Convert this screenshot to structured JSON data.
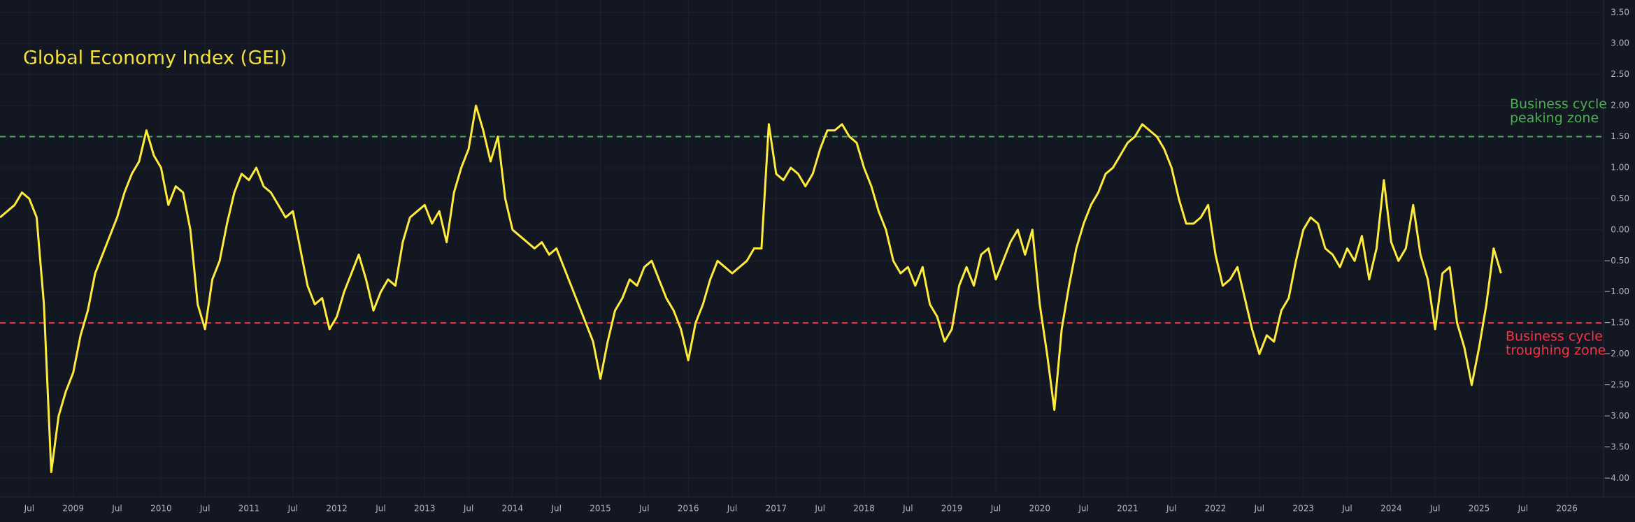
{
  "chart_data": {
    "type": "line",
    "title": "Global Economy Index (GEI)",
    "color": "#ffeb3b",
    "grid": true,
    "x": [
      "2008-03",
      "2008-04",
      "2008-05",
      "2008-06",
      "2008-07",
      "2008-08",
      "2008-09",
      "2008-10",
      "2008-11",
      "2008-12",
      "2009-01",
      "2009-02",
      "2009-03",
      "2009-04",
      "2009-05",
      "2009-06",
      "2009-07",
      "2009-08",
      "2009-09",
      "2009-10",
      "2009-11",
      "2009-12",
      "2010-01",
      "2010-02",
      "2010-03",
      "2010-04",
      "2010-05",
      "2010-06",
      "2010-07",
      "2010-08",
      "2010-09",
      "2010-10",
      "2010-11",
      "2010-12",
      "2011-01",
      "2011-02",
      "2011-03",
      "2011-04",
      "2011-05",
      "2011-06",
      "2011-07",
      "2011-08",
      "2011-09",
      "2011-10",
      "2011-11",
      "2011-12",
      "2012-01",
      "2012-02",
      "2012-03",
      "2012-04",
      "2012-05",
      "2012-06",
      "2012-07",
      "2012-08",
      "2012-09",
      "2012-10",
      "2012-11",
      "2012-12",
      "2013-01",
      "2013-02",
      "2013-03",
      "2013-04",
      "2013-05",
      "2013-06",
      "2013-07",
      "2013-08",
      "2013-09",
      "2013-10",
      "2013-11",
      "2013-12",
      "2014-01",
      "2014-02",
      "2014-03",
      "2014-04",
      "2014-05",
      "2014-06",
      "2014-07",
      "2014-08",
      "2014-09",
      "2014-10",
      "2014-11",
      "2014-12",
      "2015-01",
      "2015-02",
      "2015-03",
      "2015-04",
      "2015-05",
      "2015-06",
      "2015-07",
      "2015-08",
      "2015-09",
      "2015-10",
      "2015-11",
      "2015-12",
      "2016-01",
      "2016-02",
      "2016-03",
      "2016-04",
      "2016-05",
      "2016-06",
      "2016-07",
      "2016-08",
      "2016-09",
      "2016-10",
      "2016-11",
      "2016-12",
      "2017-01",
      "2017-02",
      "2017-03",
      "2017-04",
      "2017-05",
      "2017-06",
      "2017-07",
      "2017-08",
      "2017-09",
      "2017-10",
      "2017-11",
      "2017-12",
      "2018-01",
      "2018-02",
      "2018-03",
      "2018-04",
      "2018-05",
      "2018-06",
      "2018-07",
      "2018-08",
      "2018-09",
      "2018-10",
      "2018-11",
      "2018-12",
      "2019-01",
      "2019-02",
      "2019-03",
      "2019-04",
      "2019-05",
      "2019-06",
      "2019-07",
      "2019-08",
      "2019-09",
      "2019-10",
      "2019-11",
      "2019-12",
      "2020-01",
      "2020-02",
      "2020-03",
      "2020-04",
      "2020-05",
      "2020-06",
      "2020-07",
      "2020-08",
      "2020-09",
      "2020-10",
      "2020-11",
      "2020-12",
      "2021-01",
      "2021-02",
      "2021-03",
      "2021-04",
      "2021-05",
      "2021-06",
      "2021-07",
      "2021-08",
      "2021-09",
      "2021-10",
      "2021-11",
      "2021-12",
      "2022-01",
      "2022-02",
      "2022-03",
      "2022-04",
      "2022-05",
      "2022-06",
      "2022-07",
      "2022-08",
      "2022-09",
      "2022-10",
      "2022-11",
      "2022-12",
      "2023-01",
      "2023-02",
      "2023-03",
      "2023-04",
      "2023-05",
      "2023-06",
      "2023-07",
      "2023-08",
      "2023-09",
      "2023-10",
      "2023-11",
      "2023-12",
      "2024-01",
      "2024-02",
      "2024-03",
      "2024-04",
      "2024-05",
      "2024-06",
      "2024-07",
      "2024-08",
      "2024-09",
      "2024-10",
      "2024-11",
      "2024-12",
      "2025-01",
      "2025-02",
      "2025-03",
      "2025-04"
    ],
    "values": [
      0.2,
      0.3,
      0.4,
      0.6,
      0.5,
      0.2,
      -1.2,
      -3.9,
      -3.0,
      -2.6,
      -2.3,
      -1.7,
      -1.3,
      -0.7,
      -0.4,
      -0.1,
      0.2,
      0.6,
      0.9,
      1.1,
      1.6,
      1.2,
      1.0,
      0.4,
      0.7,
      0.6,
      0.0,
      -1.2,
      -1.6,
      -0.8,
      -0.5,
      0.1,
      0.6,
      0.9,
      0.8,
      1.0,
      0.7,
      0.6,
      0.4,
      0.2,
      0.3,
      -0.3,
      -0.9,
      -1.2,
      -1.1,
      -1.6,
      -1.4,
      -1.0,
      -0.7,
      -0.4,
      -0.8,
      -1.3,
      -1.0,
      -0.8,
      -0.9,
      -0.2,
      0.2,
      0.3,
      0.4,
      0.1,
      0.3,
      -0.2,
      0.6,
      1.0,
      1.3,
      2.0,
      1.6,
      1.1,
      1.5,
      0.5,
      0.0,
      -0.1,
      -0.2,
      -0.3,
      -0.2,
      -0.4,
      -0.3,
      -0.6,
      -0.9,
      -1.2,
      -1.5,
      -1.8,
      -2.4,
      -1.8,
      -1.3,
      -1.1,
      -0.8,
      -0.9,
      -0.6,
      -0.5,
      -0.8,
      -1.1,
      -1.3,
      -1.6,
      -2.1,
      -1.5,
      -1.2,
      -0.8,
      -0.5,
      -0.6,
      -0.7,
      -0.6,
      -0.5,
      -0.3,
      -0.3,
      1.7,
      0.9,
      0.8,
      1.0,
      0.9,
      0.7,
      0.9,
      1.3,
      1.6,
      1.6,
      1.7,
      1.5,
      1.4,
      1.0,
      0.7,
      0.3,
      0.0,
      -0.5,
      -0.7,
      -0.6,
      -0.9,
      -0.6,
      -1.2,
      -1.4,
      -1.8,
      -1.6,
      -0.9,
      -0.6,
      -0.9,
      -0.4,
      -0.3,
      -0.8,
      -0.5,
      -0.2,
      0.0,
      -0.4,
      0.0,
      -1.2,
      -2.0,
      -2.9,
      -1.6,
      -0.9,
      -0.3,
      0.1,
      0.4,
      0.6,
      0.9,
      1.0,
      1.2,
      1.4,
      1.5,
      1.7,
      1.6,
      1.5,
      1.3,
      1.0,
      0.5,
      0.1,
      0.1,
      0.2,
      0.4,
      -0.4,
      -0.9,
      -0.8,
      -0.6,
      -1.1,
      -1.6,
      -2.0,
      -1.7,
      -1.8,
      -1.3,
      -1.1,
      -0.5,
      0.0,
      0.2,
      0.1,
      -0.3,
      -0.4,
      -0.6,
      -0.3,
      -0.5,
      -0.1,
      -0.8,
      -0.3,
      0.8,
      -0.2,
      -0.5,
      -0.3,
      0.4,
      -0.4,
      -0.8,
      -1.6,
      -0.7,
      -0.6,
      -1.5,
      -1.9,
      -2.5,
      -1.9,
      -1.2,
      -0.3,
      -0.7
    ],
    "xlim": [
      "2008-03",
      "2026-06"
    ],
    "xticks": [
      {
        "value": "2008-07",
        "label": "Jul"
      },
      {
        "value": "2009-01",
        "label": "2009"
      },
      {
        "value": "2009-07",
        "label": "Jul"
      },
      {
        "value": "2010-01",
        "label": "2010"
      },
      {
        "value": "2010-07",
        "label": "Jul"
      },
      {
        "value": "2011-01",
        "label": "2011"
      },
      {
        "value": "2011-07",
        "label": "Jul"
      },
      {
        "value": "2012-01",
        "label": "2012"
      },
      {
        "value": "2012-07",
        "label": "Jul"
      },
      {
        "value": "2013-01",
        "label": "2013"
      },
      {
        "value": "2013-07",
        "label": "Jul"
      },
      {
        "value": "2014-01",
        "label": "2014"
      },
      {
        "value": "2014-07",
        "label": "Jul"
      },
      {
        "value": "2015-01",
        "label": "2015"
      },
      {
        "value": "2015-07",
        "label": "Jul"
      },
      {
        "value": "2016-01",
        "label": "2016"
      },
      {
        "value": "2016-07",
        "label": "Jul"
      },
      {
        "value": "2017-01",
        "label": "2017"
      },
      {
        "value": "2017-07",
        "label": "Jul"
      },
      {
        "value": "2018-01",
        "label": "2018"
      },
      {
        "value": "2018-07",
        "label": "Jul"
      },
      {
        "value": "2019-01",
        "label": "2019"
      },
      {
        "value": "2019-07",
        "label": "Jul"
      },
      {
        "value": "2020-01",
        "label": "2020"
      },
      {
        "value": "2020-07",
        "label": "Jul"
      },
      {
        "value": "2021-01",
        "label": "2021"
      },
      {
        "value": "2021-07",
        "label": "Jul"
      },
      {
        "value": "2022-01",
        "label": "2022"
      },
      {
        "value": "2022-07",
        "label": "Jul"
      },
      {
        "value": "2023-01",
        "label": "2023"
      },
      {
        "value": "2023-07",
        "label": "Jul"
      },
      {
        "value": "2024-01",
        "label": "2024"
      },
      {
        "value": "2024-07",
        "label": "Jul"
      },
      {
        "value": "2025-01",
        "label": "2025"
      },
      {
        "value": "2025-07",
        "label": "Jul"
      },
      {
        "value": "2026-01",
        "label": "2026"
      }
    ],
    "ylim": [
      -4.3,
      3.7
    ],
    "yticks": [
      {
        "value": 3.5,
        "label": "3.50"
      },
      {
        "value": 3,
        "label": "3.00"
      },
      {
        "value": 2.5,
        "label": "2.50"
      },
      {
        "value": 2,
        "label": "2.00"
      },
      {
        "value": 1.5,
        "label": "1.50"
      },
      {
        "value": 1,
        "label": "1.00"
      },
      {
        "value": 0.5,
        "label": "0.50"
      },
      {
        "value": 0,
        "label": "0.00"
      },
      {
        "value": -0.5,
        "label": "−0.50"
      },
      {
        "value": -1,
        "label": "−1.00"
      },
      {
        "value": -1.5,
        "label": "−1.50"
      },
      {
        "value": -2,
        "label": "−2.00"
      },
      {
        "value": -2.5,
        "label": "−2.50"
      },
      {
        "value": -3,
        "label": "−3.00"
      },
      {
        "value": -3.5,
        "label": "−3.50"
      },
      {
        "value": -4,
        "label": "−4.00"
      }
    ],
    "reference_lines": [
      {
        "value": 1.5,
        "color": "#4caf50",
        "label": [
          "Business cycle",
          "peaking zone"
        ]
      },
      {
        "value": -1.5,
        "color": "#f23645",
        "label": [
          "Business cycle",
          "troughing zone"
        ]
      }
    ]
  }
}
